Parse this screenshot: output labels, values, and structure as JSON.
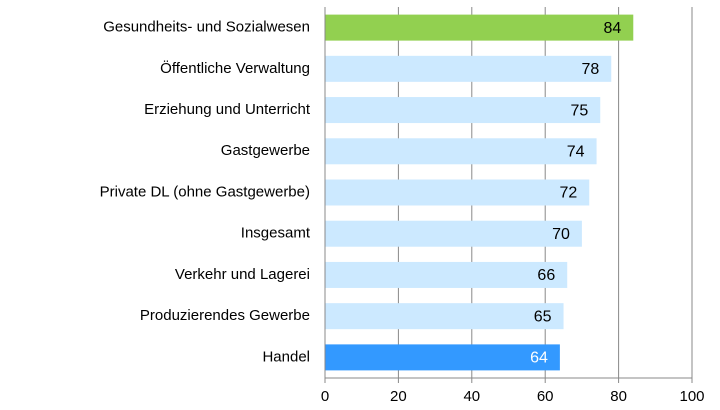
{
  "chart_data": {
    "type": "bar",
    "orientation": "horizontal",
    "categories": [
      "Gesundheits- und Sozialwesen",
      "Öffentliche Verwaltung",
      "Erziehung und Unterricht",
      "Gastgewerbe",
      "Private DL (ohne Gastgewerbe)",
      "Insgesamt",
      "Verkehr und Lagerei",
      "Produzierendes Gewerbe",
      "Handel"
    ],
    "values": [
      84,
      78,
      75,
      74,
      72,
      70,
      66,
      65,
      64
    ],
    "colors": [
      "#92d050",
      "#cce9ff",
      "#cce9ff",
      "#cce9ff",
      "#cce9ff",
      "#cce9ff",
      "#cce9ff",
      "#cce9ff",
      "#3399ff"
    ],
    "label_colors": [
      "#000000",
      "#000000",
      "#000000",
      "#000000",
      "#000000",
      "#000000",
      "#000000",
      "#000000",
      "#ffffff"
    ],
    "xlim": [
      0,
      100
    ],
    "xticks": [
      0,
      20,
      40,
      60,
      80,
      100
    ],
    "grid": true
  }
}
